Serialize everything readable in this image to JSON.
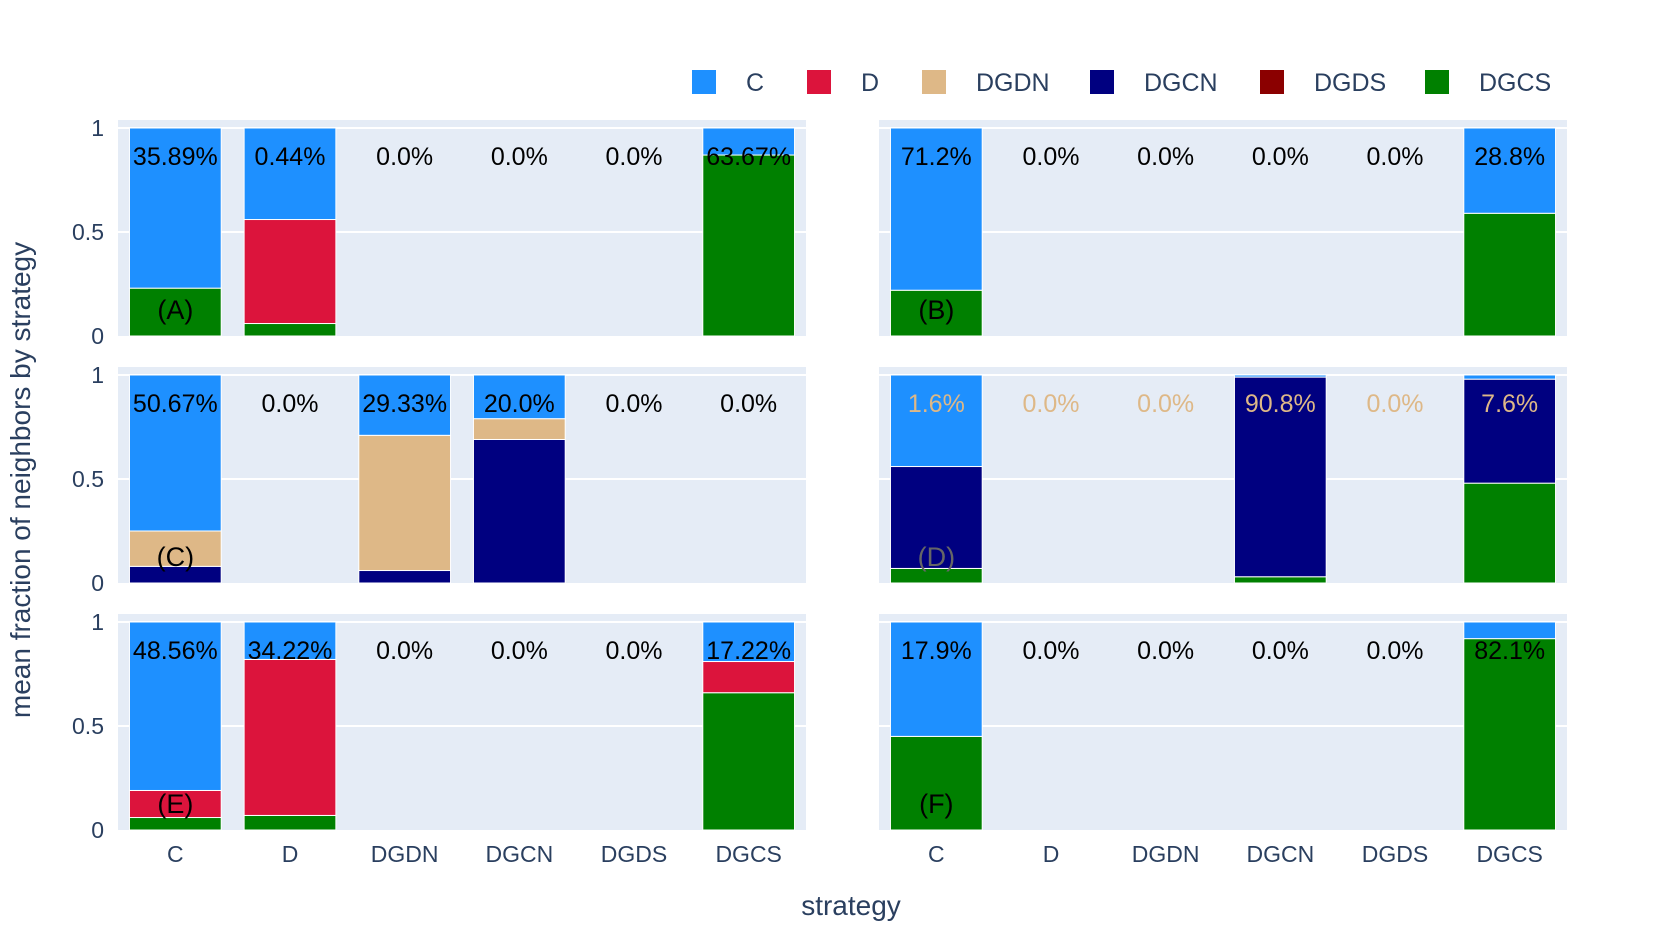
{
  "colors": {
    "C": "#1e90ff",
    "D": "#dc143c",
    "DGDN": "#deb887",
    "DGCN": "#000080",
    "DGDS": "#8b0000",
    "DGCS": "#008000",
    "plot_bg": "#e5ecf6",
    "axis_text": "#2a3f5f"
  },
  "legend": [
    "C",
    "D",
    "DGDN",
    "DGCN",
    "DGDS",
    "DGCS"
  ],
  "chart_data": {
    "type": "bar",
    "barmode": "stack",
    "xlabel": "strategy",
    "ylabel": "mean fraction of neighbors by strategy",
    "ylim": [
      0,
      1
    ],
    "yticks": [
      "0",
      "0.5",
      "1"
    ],
    "categories": [
      "C",
      "D",
      "DGDN",
      "DGCN",
      "DGDS",
      "DGCS"
    ],
    "stack_order": [
      "DGCS",
      "DGDS",
      "DGCN",
      "DGDN",
      "D",
      "C"
    ],
    "panels": [
      {
        "label": "(A)",
        "pct_labels": [
          "35.89%",
          "0.44%",
          "0.0%",
          "0.0%",
          "0.0%",
          "63.67%"
        ],
        "label_color": "#000000",
        "label_text_color": "#000000",
        "bars": [
          {
            "DGCS": 0.23,
            "C": 0.77
          },
          {
            "DGCS": 0.06,
            "D": 0.5,
            "C": 0.44
          },
          {},
          {},
          {},
          {
            "DGCS": 0.87,
            "C": 0.13
          }
        ]
      },
      {
        "label": "(B)",
        "pct_labels": [
          "71.2%",
          "0.0%",
          "0.0%",
          "0.0%",
          "0.0%",
          "28.8%"
        ],
        "label_color": "#000000",
        "label_text_color": "#000000",
        "bars": [
          {
            "DGCS": 0.22,
            "C": 0.78
          },
          {},
          {},
          {},
          {},
          {
            "DGCS": 0.59,
            "C": 0.41
          }
        ]
      },
      {
        "label": "(C)",
        "pct_labels": [
          "50.67%",
          "0.0%",
          "29.33%",
          "20.0%",
          "0.0%",
          "0.0%"
        ],
        "label_color": "#000000",
        "label_text_color": "#000000",
        "bars": [
          {
            "DGCN": 0.08,
            "DGDN": 0.17,
            "C": 0.75
          },
          {},
          {
            "DGCN": 0.06,
            "DGDN": 0.65,
            "C": 0.29
          },
          {
            "DGCN": 0.69,
            "DGDN": 0.1,
            "C": 0.21
          },
          {},
          {}
        ]
      },
      {
        "label": "(D)",
        "pct_labels": [
          "1.6%",
          "0.0%",
          "0.0%",
          "90.8%",
          "0.0%",
          "7.6%"
        ],
        "label_color": "#666666",
        "label_text_color": "#deb887",
        "bars": [
          {
            "DGCS": 0.07,
            "DGCN": 0.49,
            "C": 0.44
          },
          {},
          {},
          {
            "DGCS": 0.03,
            "DGCN": 0.96,
            "C": 0.01
          },
          {},
          {
            "DGCS": 0.48,
            "DGCN": 0.5,
            "C": 0.02
          }
        ]
      },
      {
        "label": "(E)",
        "pct_labels": [
          "48.56%",
          "34.22%",
          "0.0%",
          "0.0%",
          "0.0%",
          "17.22%"
        ],
        "label_color": "#000000",
        "label_text_color": "#000000",
        "bars": [
          {
            "DGCS": 0.06,
            "D": 0.13,
            "C": 0.81
          },
          {
            "DGCS": 0.07,
            "D": 0.75,
            "C": 0.18
          },
          {},
          {},
          {},
          {
            "DGCS": 0.66,
            "D": 0.15,
            "C": 0.19
          }
        ]
      },
      {
        "label": "(F)",
        "pct_labels": [
          "17.9%",
          "0.0%",
          "0.0%",
          "0.0%",
          "0.0%",
          "82.1%"
        ],
        "label_color": "#000000",
        "label_text_color": "#000000",
        "bars": [
          {
            "DGCS": 0.45,
            "C": 0.55
          },
          {},
          {},
          {},
          {},
          {
            "DGCS": 0.92,
            "C": 0.08
          }
        ]
      }
    ]
  }
}
